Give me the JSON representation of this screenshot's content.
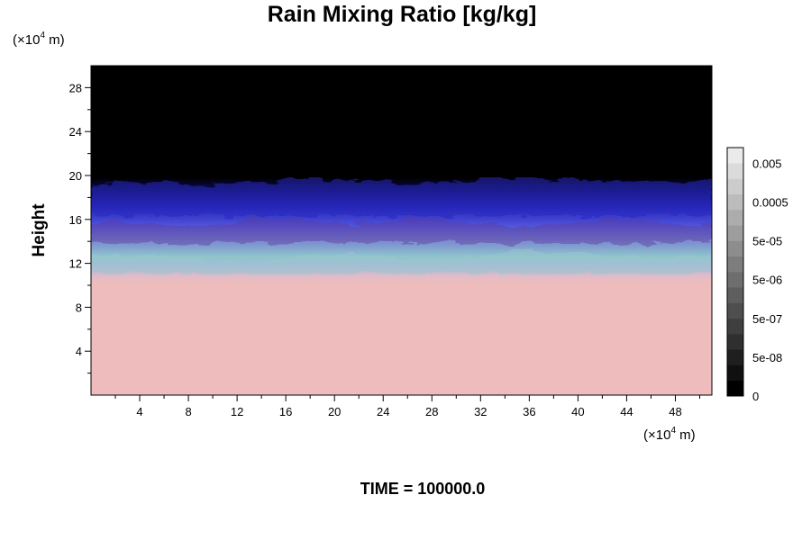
{
  "chart_data": {
    "type": "heatmap",
    "title": "Rain Mixing Ratio [kg/kg]",
    "xlabel": "",
    "ylabel": "Height",
    "x_unit_prefix": "(×10",
    "unit_exponent": "4",
    "unit_suffix": " m)",
    "xlim": [
      0,
      51
    ],
    "ylim": [
      0,
      30
    ],
    "x_ticks": [
      4,
      8,
      12,
      16,
      20,
      24,
      28,
      32,
      36,
      40,
      44,
      48
    ],
    "y_ticks": [
      4,
      8,
      12,
      16,
      20,
      24,
      28
    ],
    "time_text": "TIME = 100000.0",
    "colorbar": {
      "labels": [
        "0",
        "5e-08",
        "5e-07",
        "5e-06",
        "5e-05",
        "0.0005",
        "0.005"
      ],
      "levels": 16
    },
    "field_regions": [
      {
        "name": "lower",
        "y_from": 0,
        "y_to": 11,
        "color": "#eebcbc"
      },
      {
        "name": "mixed-cyan",
        "y_from": 11,
        "y_to": 14,
        "color": "#8ec5cc"
      },
      {
        "name": "blue-band",
        "y_from": 14,
        "y_to": 17.5,
        "color": "#4b4fd8"
      },
      {
        "name": "dark-blue",
        "y_from": 17.5,
        "y_to": 19.5,
        "color": "#1a1a9a"
      },
      {
        "name": "upper",
        "y_from": 19.5,
        "y_to": 30,
        "color": "#000000"
      }
    ]
  }
}
